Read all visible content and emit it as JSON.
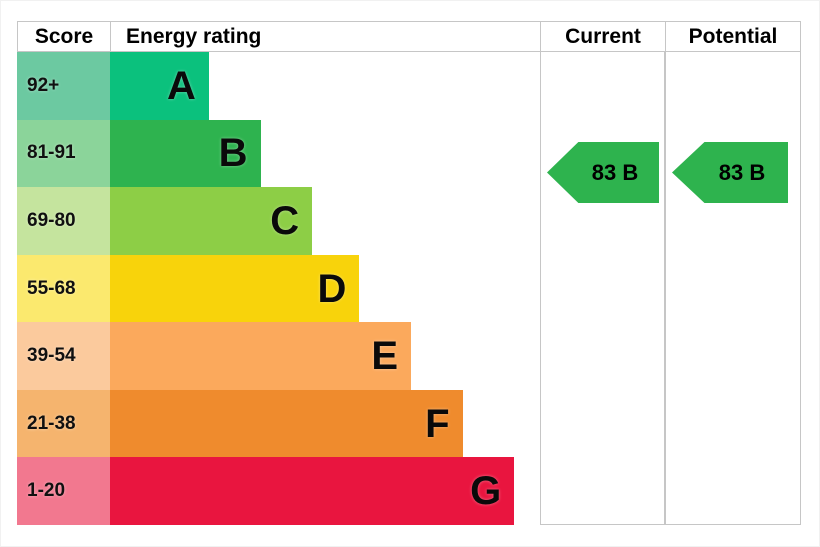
{
  "header": {
    "score": "Score",
    "energy_rating": "Energy rating",
    "current": "Current",
    "potential": "Potential"
  },
  "colors": {
    "border": "#c6c6c6",
    "header_text": "#000000",
    "arrow_green": "#2eb34e"
  },
  "chart_data": {
    "type": "bar",
    "title": "Energy rating",
    "categories": [
      "A",
      "B",
      "C",
      "D",
      "E",
      "F",
      "G"
    ],
    "score_ranges": [
      "92+",
      "81-91",
      "69-80",
      "55-68",
      "39-54",
      "21-38",
      "1-20"
    ],
    "bands": [
      {
        "grade": "A",
        "range": "92+",
        "width_pct": 23,
        "bar_color": "#0bc17d",
        "score_color": "#6cc9a1"
      },
      {
        "grade": "B",
        "range": "81-91",
        "width_pct": 35,
        "bar_color": "#2eb34f",
        "score_color": "#8bd49a"
      },
      {
        "grade": "C",
        "range": "69-80",
        "width_pct": 47,
        "bar_color": "#8dce46",
        "score_color": "#c5e49e"
      },
      {
        "grade": "D",
        "range": "55-68",
        "width_pct": 58,
        "bar_color": "#f8d30b",
        "score_color": "#fbe96e"
      },
      {
        "grade": "E",
        "range": "39-54",
        "width_pct": 70,
        "bar_color": "#fba95c",
        "score_color": "#fbca9d"
      },
      {
        "grade": "F",
        "range": "21-38",
        "width_pct": 82,
        "bar_color": "#ef8b2d",
        "score_color": "#f5b46e"
      },
      {
        "grade": "G",
        "range": "1-20",
        "width_pct": 94,
        "bar_color": "#e9153f",
        "score_color": "#f2788f"
      }
    ],
    "current": {
      "value": 83,
      "grade": "B",
      "label": "83 B",
      "arrow_color": "#2eb34e"
    },
    "potential": {
      "value": 83,
      "grade": "B",
      "label": "83 B",
      "arrow_color": "#2eb34e"
    }
  }
}
